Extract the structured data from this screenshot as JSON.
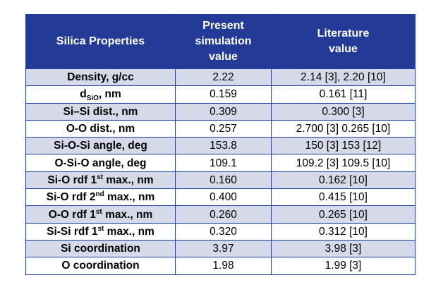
{
  "table": {
    "headers": [
      "Silica Properties",
      "Present simulation value",
      "Literature value"
    ],
    "header_lines": {
      "col2": [
        "Present",
        "simulation",
        "value"
      ],
      "col3": [
        "Literature",
        "value"
      ]
    },
    "rows": [
      {
        "prop_parts": [
          "Density, g/cc"
        ],
        "present": "2.22",
        "literature": "2.14 [3], 2.20 [10]"
      },
      {
        "prop_parts": [
          "d",
          "SiO",
          ", nm"
        ],
        "present": "0.159",
        "literature": "0.161 [11]"
      },
      {
        "prop_parts": [
          "Si–Si dist., nm"
        ],
        "present": "0.309",
        "literature": "0.300 [3]"
      },
      {
        "prop_parts": [
          "O-O dist., nm"
        ],
        "present": "0.257",
        "literature": "2.700 [3] 0.265 [10]"
      },
      {
        "prop_parts": [
          "Si-O-Si angle, deg"
        ],
        "present": "153.8",
        "literature": "150 [3] 153 [12]"
      },
      {
        "prop_parts": [
          "O-Si-O angle, deg"
        ],
        "present": "109.1",
        "literature": "109.2 [3] 109.5 [10]"
      },
      {
        "prop_parts": [
          "Si-O rdf 1",
          "st",
          " max., nm"
        ],
        "present": "0.160",
        "literature": "0.162 [10]"
      },
      {
        "prop_parts": [
          "Si-O rdf 2",
          "nd",
          " max., nm"
        ],
        "present": "0.400",
        "literature": "0.415 [10]"
      },
      {
        "prop_parts": [
          "O-O rdf 1",
          "st",
          " max., nm"
        ],
        "present": "0.260",
        "literature": "0.265 [10]"
      },
      {
        "prop_parts": [
          "Si-Si rdf 1",
          "st",
          " max., nm"
        ],
        "present": "0.320",
        "literature": "0.312 [10]"
      },
      {
        "prop_parts": [
          "Si coordination"
        ],
        "present": "3.97",
        "literature": "3.98 [3]"
      },
      {
        "prop_parts": [
          "O coordination"
        ],
        "present": "1.98",
        "literature": "1.99 [3]"
      }
    ]
  },
  "colors": {
    "header_bg": "#233a96",
    "header_text": "#ffffff",
    "border": "#1f3fa0",
    "stripe_bg": "#d6d9e8"
  }
}
